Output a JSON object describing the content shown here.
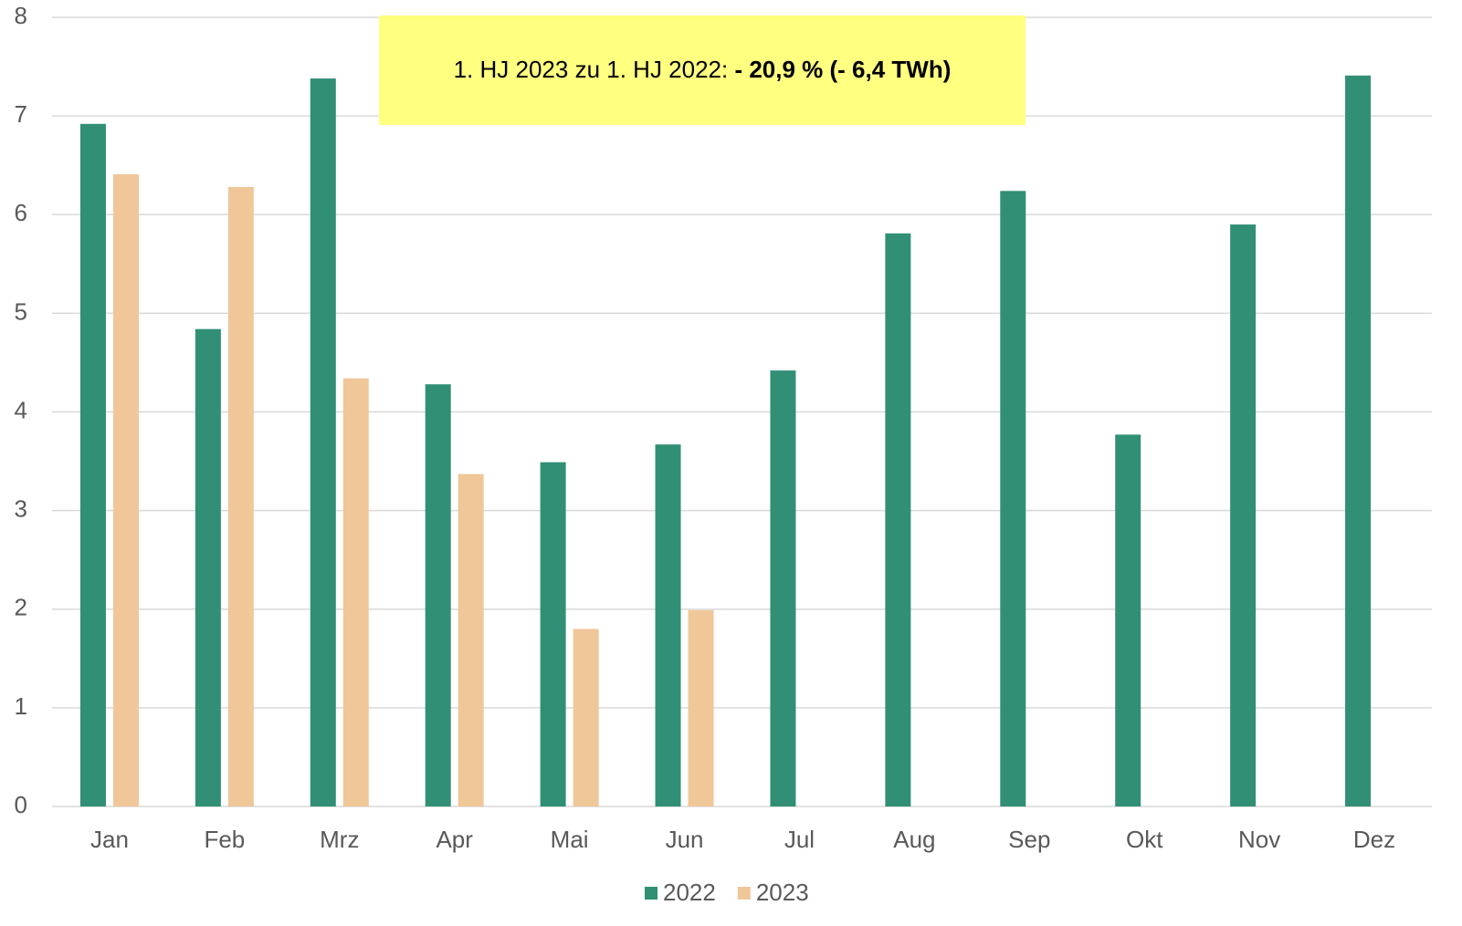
{
  "chart_data": {
    "type": "bar",
    "annotation": {
      "text": "1. HJ 2023 zu 1. HJ 2022: ",
      "bold": "- 20,9 % (- 6,4 TWh)"
    },
    "categories": [
      "Jan",
      "Feb",
      "Mrz",
      "Apr",
      "Mai",
      "Jun",
      "Jul",
      "Aug",
      "Sep",
      "Okt",
      "Nov",
      "Dez"
    ],
    "series": [
      {
        "name": "2022",
        "color": "#318f76",
        "values": [
          6.92,
          4.84,
          7.38,
          4.28,
          3.49,
          3.67,
          4.42,
          5.81,
          6.24,
          3.77,
          5.9,
          7.41
        ]
      },
      {
        "name": "2023",
        "color": "#f0c799",
        "values": [
          6.41,
          6.28,
          4.34,
          3.37,
          1.8,
          1.99,
          null,
          null,
          null,
          null,
          null,
          null
        ]
      }
    ],
    "ylim": [
      0,
      8
    ],
    "yticks": [
      0,
      1,
      2,
      3,
      4,
      5,
      6,
      7,
      8
    ],
    "grid": true,
    "legend": "bottom"
  }
}
